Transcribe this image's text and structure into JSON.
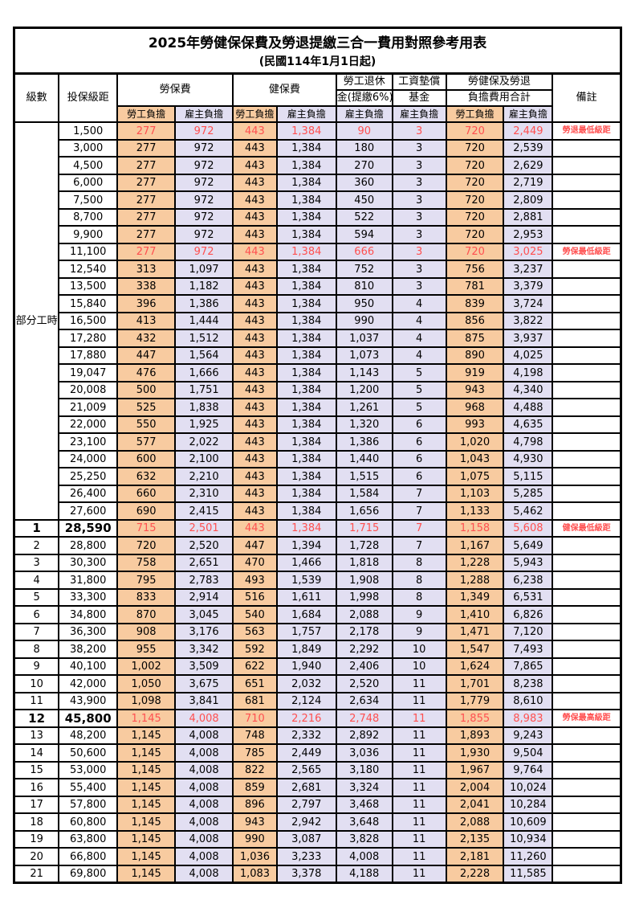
{
  "page": {
    "title": "2025年勞健保保費及勞退提繳三合一費用對照參考用表",
    "subtitle": "(民國114年1月1日起)"
  },
  "colors": {
    "employee_bg": "#F8CBA0",
    "employer_bg": "#E2DFF2",
    "highlight_text": "#FF5050",
    "border": "#000000"
  },
  "table": {
    "headers": {
      "level": "級數",
      "bracket": "投保級距",
      "labor": "勞保費",
      "health": "健保費",
      "pension_line1": "勞工退休",
      "pension_line2": "金(提繳6%)",
      "wage_fund_line1": "工資墊償",
      "wage_fund_line2": "基金",
      "total_line1": "勞健保及勞退",
      "total_line2": "負擔費用合計",
      "remark": "備註"
    },
    "sub_headers": {
      "employee": "勞工負擔",
      "employer": "雇主負擔"
    },
    "part_time_label": "部分工時",
    "rows": [
      {
        "level": "",
        "bracket": "1,500",
        "values": [
          "277",
          "972",
          "443",
          "1,384",
          "90",
          "3",
          "720",
          "2,449"
        ],
        "remark": "勞退最低級距",
        "highlight": true,
        "bold": false
      },
      {
        "level": "",
        "bracket": "3,000",
        "values": [
          "277",
          "972",
          "443",
          "1,384",
          "180",
          "3",
          "720",
          "2,539"
        ],
        "remark": "",
        "highlight": false,
        "bold": false
      },
      {
        "level": "",
        "bracket": "4,500",
        "values": [
          "277",
          "972",
          "443",
          "1,384",
          "270",
          "3",
          "720",
          "2,629"
        ],
        "remark": "",
        "highlight": false,
        "bold": false
      },
      {
        "level": "",
        "bracket": "6,000",
        "values": [
          "277",
          "972",
          "443",
          "1,384",
          "360",
          "3",
          "720",
          "2,719"
        ],
        "remark": "",
        "highlight": false,
        "bold": false
      },
      {
        "level": "",
        "bracket": "7,500",
        "values": [
          "277",
          "972",
          "443",
          "1,384",
          "450",
          "3",
          "720",
          "2,809"
        ],
        "remark": "",
        "highlight": false,
        "bold": false
      },
      {
        "level": "",
        "bracket": "8,700",
        "values": [
          "277",
          "972",
          "443",
          "1,384",
          "522",
          "3",
          "720",
          "2,881"
        ],
        "remark": "",
        "highlight": false,
        "bold": false
      },
      {
        "level": "",
        "bracket": "9,900",
        "values": [
          "277",
          "972",
          "443",
          "1,384",
          "594",
          "3",
          "720",
          "2,953"
        ],
        "remark": "",
        "highlight": false,
        "bold": false
      },
      {
        "level": "",
        "bracket": "11,100",
        "values": [
          "277",
          "972",
          "443",
          "1,384",
          "666",
          "3",
          "720",
          "3,025"
        ],
        "remark": "勞保最低級距",
        "highlight": true,
        "bold": false
      },
      {
        "level": "",
        "bracket": "12,540",
        "values": [
          "313",
          "1,097",
          "443",
          "1,384",
          "752",
          "3",
          "756",
          "3,237"
        ],
        "remark": "",
        "highlight": false,
        "bold": false
      },
      {
        "level": "",
        "bracket": "13,500",
        "values": [
          "338",
          "1,182",
          "443",
          "1,384",
          "810",
          "3",
          "781",
          "3,379"
        ],
        "remark": "",
        "highlight": false,
        "bold": false
      },
      {
        "level": "",
        "bracket": "15,840",
        "values": [
          "396",
          "1,386",
          "443",
          "1,384",
          "950",
          "4",
          "839",
          "3,724"
        ],
        "remark": "",
        "highlight": false,
        "bold": false
      },
      {
        "level": "",
        "bracket": "16,500",
        "values": [
          "413",
          "1,444",
          "443",
          "1,384",
          "990",
          "4",
          "856",
          "3,822"
        ],
        "remark": "",
        "highlight": false,
        "bold": false
      },
      {
        "level": "",
        "bracket": "17,280",
        "values": [
          "432",
          "1,512",
          "443",
          "1,384",
          "1,037",
          "4",
          "875",
          "3,937"
        ],
        "remark": "",
        "highlight": false,
        "bold": false
      },
      {
        "level": "",
        "bracket": "17,880",
        "values": [
          "447",
          "1,564",
          "443",
          "1,384",
          "1,073",
          "4",
          "890",
          "4,025"
        ],
        "remark": "",
        "highlight": false,
        "bold": false
      },
      {
        "level": "",
        "bracket": "19,047",
        "values": [
          "476",
          "1,666",
          "443",
          "1,384",
          "1,143",
          "5",
          "919",
          "4,198"
        ],
        "remark": "",
        "highlight": false,
        "bold": false
      },
      {
        "level": "",
        "bracket": "20,008",
        "values": [
          "500",
          "1,751",
          "443",
          "1,384",
          "1,200",
          "5",
          "943",
          "4,340"
        ],
        "remark": "",
        "highlight": false,
        "bold": false
      },
      {
        "level": "",
        "bracket": "21,009",
        "values": [
          "525",
          "1,838",
          "443",
          "1,384",
          "1,261",
          "5",
          "968",
          "4,488"
        ],
        "remark": "",
        "highlight": false,
        "bold": false
      },
      {
        "level": "",
        "bracket": "22,000",
        "values": [
          "550",
          "1,925",
          "443",
          "1,384",
          "1,320",
          "6",
          "993",
          "4,635"
        ],
        "remark": "",
        "highlight": false,
        "bold": false
      },
      {
        "level": "",
        "bracket": "23,100",
        "values": [
          "577",
          "2,022",
          "443",
          "1,384",
          "1,386",
          "6",
          "1,020",
          "4,798"
        ],
        "remark": "",
        "highlight": false,
        "bold": false
      },
      {
        "level": "",
        "bracket": "24,000",
        "values": [
          "600",
          "2,100",
          "443",
          "1,384",
          "1,440",
          "6",
          "1,043",
          "4,930"
        ],
        "remark": "",
        "highlight": false,
        "bold": false
      },
      {
        "level": "",
        "bracket": "25,250",
        "values": [
          "632",
          "2,210",
          "443",
          "1,384",
          "1,515",
          "6",
          "1,075",
          "5,115"
        ],
        "remark": "",
        "highlight": false,
        "bold": false
      },
      {
        "level": "",
        "bracket": "26,400",
        "values": [
          "660",
          "2,310",
          "443",
          "1,384",
          "1,584",
          "7",
          "1,103",
          "5,285"
        ],
        "remark": "",
        "highlight": false,
        "bold": false
      },
      {
        "level": "",
        "bracket": "27,600",
        "values": [
          "690",
          "2,415",
          "443",
          "1,384",
          "1,656",
          "7",
          "1,133",
          "5,462"
        ],
        "remark": "",
        "highlight": false,
        "bold": false
      },
      {
        "level": "1",
        "bracket": "28,590",
        "values": [
          "715",
          "2,501",
          "443",
          "1,384",
          "1,715",
          "7",
          "1,158",
          "5,608"
        ],
        "remark": "健保最低級距",
        "highlight": true,
        "bold": true
      },
      {
        "level": "2",
        "bracket": "28,800",
        "values": [
          "720",
          "2,520",
          "447",
          "1,394",
          "1,728",
          "7",
          "1,167",
          "5,649"
        ],
        "remark": "",
        "highlight": false,
        "bold": false
      },
      {
        "level": "3",
        "bracket": "30,300",
        "values": [
          "758",
          "2,651",
          "470",
          "1,466",
          "1,818",
          "8",
          "1,228",
          "5,943"
        ],
        "remark": "",
        "highlight": false,
        "bold": false
      },
      {
        "level": "4",
        "bracket": "31,800",
        "values": [
          "795",
          "2,783",
          "493",
          "1,539",
          "1,908",
          "8",
          "1,288",
          "6,238"
        ],
        "remark": "",
        "highlight": false,
        "bold": false
      },
      {
        "level": "5",
        "bracket": "33,300",
        "values": [
          "833",
          "2,914",
          "516",
          "1,611",
          "1,998",
          "8",
          "1,349",
          "6,531"
        ],
        "remark": "",
        "highlight": false,
        "bold": false
      },
      {
        "level": "6",
        "bracket": "34,800",
        "values": [
          "870",
          "3,045",
          "540",
          "1,684",
          "2,088",
          "9",
          "1,410",
          "6,826"
        ],
        "remark": "",
        "highlight": false,
        "bold": false
      },
      {
        "level": "7",
        "bracket": "36,300",
        "values": [
          "908",
          "3,176",
          "563",
          "1,757",
          "2,178",
          "9",
          "1,471",
          "7,120"
        ],
        "remark": "",
        "highlight": false,
        "bold": false
      },
      {
        "level": "8",
        "bracket": "38,200",
        "values": [
          "955",
          "3,342",
          "592",
          "1,849",
          "2,292",
          "10",
          "1,547",
          "7,493"
        ],
        "remark": "",
        "highlight": false,
        "bold": false
      },
      {
        "level": "9",
        "bracket": "40,100",
        "values": [
          "1,002",
          "3,509",
          "622",
          "1,940",
          "2,406",
          "10",
          "1,624",
          "7,865"
        ],
        "remark": "",
        "highlight": false,
        "bold": false
      },
      {
        "level": "10",
        "bracket": "42,000",
        "values": [
          "1,050",
          "3,675",
          "651",
          "2,032",
          "2,520",
          "11",
          "1,701",
          "8,238"
        ],
        "remark": "",
        "highlight": false,
        "bold": false
      },
      {
        "level": "11",
        "bracket": "43,900",
        "values": [
          "1,098",
          "3,841",
          "681",
          "2,124",
          "2,634",
          "11",
          "1,779",
          "8,610"
        ],
        "remark": "",
        "highlight": false,
        "bold": false
      },
      {
        "level": "12",
        "bracket": "45,800",
        "values": [
          "1,145",
          "4,008",
          "710",
          "2,216",
          "2,748",
          "11",
          "1,855",
          "8,983"
        ],
        "remark": "勞保最高級距",
        "highlight": true,
        "bold": true
      },
      {
        "level": "13",
        "bracket": "48,200",
        "values": [
          "1,145",
          "4,008",
          "748",
          "2,332",
          "2,892",
          "11",
          "1,893",
          "9,243"
        ],
        "remark": "",
        "highlight": false,
        "bold": false
      },
      {
        "level": "14",
        "bracket": "50,600",
        "values": [
          "1,145",
          "4,008",
          "785",
          "2,449",
          "3,036",
          "11",
          "1,930",
          "9,504"
        ],
        "remark": "",
        "highlight": false,
        "bold": false
      },
      {
        "level": "15",
        "bracket": "53,000",
        "values": [
          "1,145",
          "4,008",
          "822",
          "2,565",
          "3,180",
          "11",
          "1,967",
          "9,764"
        ],
        "remark": "",
        "highlight": false,
        "bold": false
      },
      {
        "level": "16",
        "bracket": "55,400",
        "values": [
          "1,145",
          "4,008",
          "859",
          "2,681",
          "3,324",
          "11",
          "2,004",
          "10,024"
        ],
        "remark": "",
        "highlight": false,
        "bold": false
      },
      {
        "level": "17",
        "bracket": "57,800",
        "values": [
          "1,145",
          "4,008",
          "896",
          "2,797",
          "3,468",
          "11",
          "2,041",
          "10,284"
        ],
        "remark": "",
        "highlight": false,
        "bold": false
      },
      {
        "level": "18",
        "bracket": "60,800",
        "values": [
          "1,145",
          "4,008",
          "943",
          "2,942",
          "3,648",
          "11",
          "2,088",
          "10,609"
        ],
        "remark": "",
        "highlight": false,
        "bold": false
      },
      {
        "level": "19",
        "bracket": "63,800",
        "values": [
          "1,145",
          "4,008",
          "990",
          "3,087",
          "3,828",
          "11",
          "2,135",
          "10,934"
        ],
        "remark": "",
        "highlight": false,
        "bold": false
      },
      {
        "level": "20",
        "bracket": "66,800",
        "values": [
          "1,145",
          "4,008",
          "1,036",
          "3,233",
          "4,008",
          "11",
          "2,181",
          "11,260"
        ],
        "remark": "",
        "highlight": false,
        "bold": false
      },
      {
        "level": "21",
        "bracket": "69,800",
        "values": [
          "1,145",
          "4,008",
          "1,083",
          "3,378",
          "4,188",
          "11",
          "2,228",
          "11,585"
        ],
        "remark": "",
        "highlight": false,
        "bold": false
      }
    ]
  }
}
